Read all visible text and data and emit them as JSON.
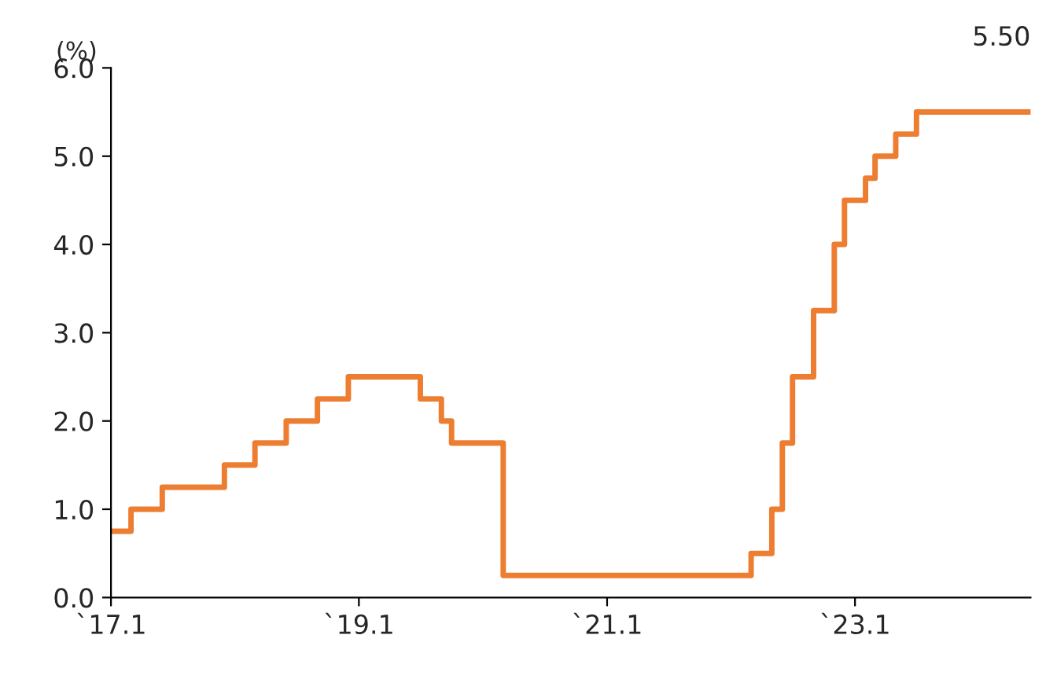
{
  "chart_data": {
    "type": "step",
    "ylabel": "(%)",
    "x": [
      "2017-01",
      "2017-03",
      "2017-06",
      "2017-12",
      "2018-03",
      "2018-06",
      "2018-09",
      "2018-12",
      "2019-07",
      "2019-09",
      "2019-10",
      "2020-03",
      "2022-03",
      "2022-05",
      "2022-06",
      "2022-07",
      "2022-09",
      "2022-11",
      "2022-12",
      "2023-02",
      "2023-03",
      "2023-05",
      "2023-07",
      "2024-06"
    ],
    "series": [
      {
        "color": "#ed7d31",
        "values": [
          0.75,
          1.0,
          1.25,
          1.5,
          1.75,
          2.0,
          2.25,
          2.5,
          2.25,
          2.0,
          1.75,
          0.25,
          0.5,
          1.0,
          1.75,
          2.5,
          3.25,
          4.0,
          4.5,
          4.75,
          5.0,
          5.25,
          5.5,
          5.5
        ]
      }
    ],
    "xlim": [
      "2017-01",
      "2024-06"
    ],
    "xticks": [
      {
        "value": "2017-01",
        "label": "`17.1"
      },
      {
        "value": "2019-01",
        "label": "`19.1"
      },
      {
        "value": "2021-01",
        "label": "`21.1"
      },
      {
        "value": "2023-01",
        "label": "`23.1"
      }
    ],
    "ylim": [
      0,
      6
    ],
    "yticks": [
      {
        "value": 0,
        "label": "0.0"
      },
      {
        "value": 1,
        "label": "1.0"
      },
      {
        "value": 2,
        "label": "2.0"
      },
      {
        "value": 3,
        "label": "3.0"
      },
      {
        "value": 4,
        "label": "4.0"
      },
      {
        "value": 5,
        "label": "5.0"
      },
      {
        "value": 6,
        "label": "6.0"
      }
    ],
    "annotations": [
      {
        "text": "5.50",
        "x": "2024-06",
        "y": 5.5
      }
    ],
    "grid": false,
    "legend": false
  }
}
